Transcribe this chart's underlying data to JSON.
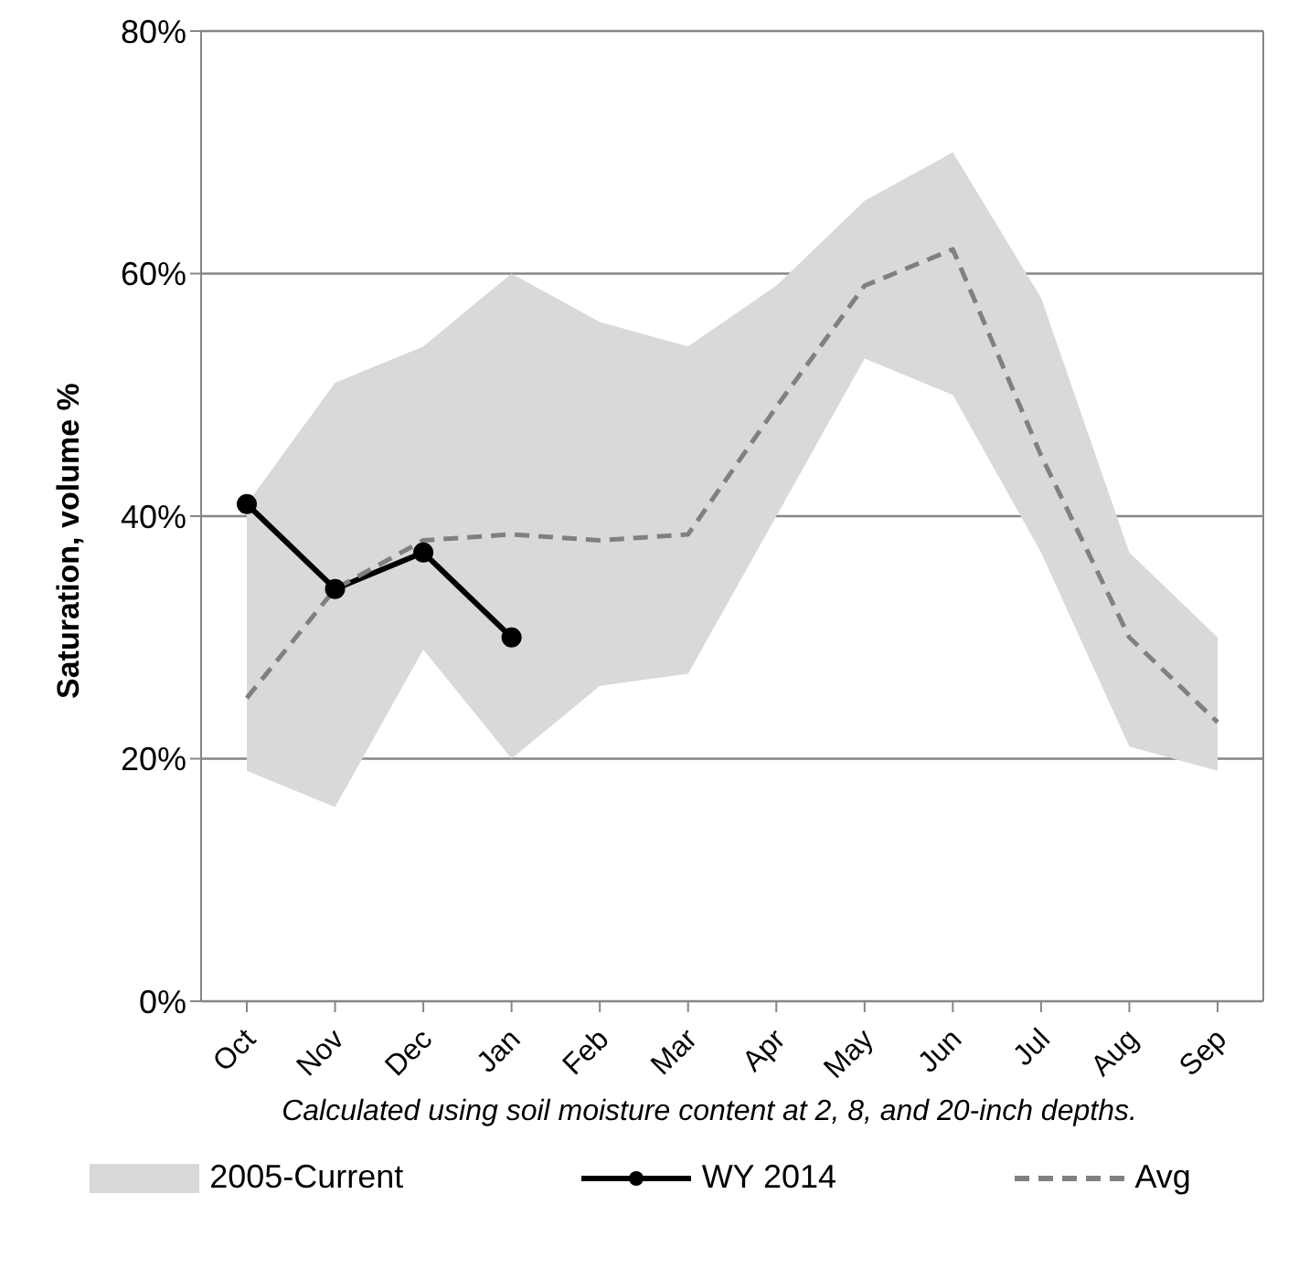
{
  "chart_data": {
    "type": "line",
    "ylabel": "Saturation, volume %",
    "categories": [
      "Oct",
      "Nov",
      "Dec",
      "Jan",
      "Feb",
      "Mar",
      "Apr",
      "May",
      "Jun",
      "Jul",
      "Aug",
      "Sep"
    ],
    "series": [
      {
        "name": "2005-Current",
        "type": "area",
        "color": "#d9d9d9",
        "values": [
          null,
          null,
          null,
          null,
          null,
          null,
          null,
          null,
          null,
          null,
          null,
          null
        ],
        "lower": [
          19,
          16,
          29,
          20,
          26,
          27,
          40,
          53,
          50,
          37,
          21,
          19
        ],
        "upper": [
          41,
          51,
          54,
          60,
          56,
          54,
          59,
          66,
          70,
          58,
          37,
          30
        ]
      },
      {
        "name": "WY 2014",
        "type": "line",
        "color": "#000000",
        "marker": "circle",
        "line_style": "solid",
        "values": [
          41,
          34,
          37,
          30,
          null,
          null,
          null,
          null,
          null,
          null,
          null,
          null
        ]
      },
      {
        "name": "Avg",
        "type": "line",
        "color": "#808080",
        "marker": "none",
        "line_style": "dashed",
        "values": [
          25,
          34,
          38,
          38.5,
          38,
          38.5,
          49,
          59,
          62,
          45,
          30,
          23
        ]
      }
    ],
    "ylim": [
      0,
      80
    ],
    "yticks": [
      {
        "value": 0,
        "label": "0%"
      },
      {
        "value": 20,
        "label": "20%"
      },
      {
        "value": 40,
        "label": "40%"
      },
      {
        "value": 60,
        "label": "60%"
      },
      {
        "value": 80,
        "label": "80%"
      }
    ],
    "grid": "y",
    "legend": "bottom",
    "annotations": [
      "Calculated using soil moisture content at 2, 8, and 20-inch depths."
    ]
  }
}
